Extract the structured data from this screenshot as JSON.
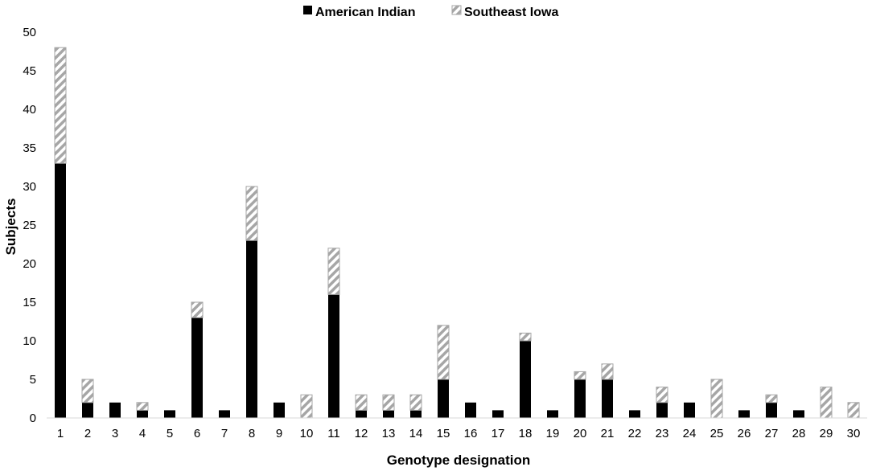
{
  "chart_data": {
    "type": "bar",
    "stacked": true,
    "title": "",
    "xlabel": "Genotype designation",
    "ylabel": "Subjects",
    "ylim": [
      0,
      50
    ],
    "yticks": [
      0,
      5,
      10,
      15,
      20,
      25,
      30,
      35,
      40,
      45,
      50
    ],
    "grid": false,
    "legend_position": "top-center",
    "categories": [
      "1",
      "2",
      "3",
      "4",
      "5",
      "6",
      "7",
      "8",
      "9",
      "10",
      "11",
      "12",
      "13",
      "14",
      "15",
      "16",
      "17",
      "18",
      "19",
      "20",
      "21",
      "22",
      "23",
      "24",
      "25",
      "26",
      "27",
      "28",
      "29",
      "30"
    ],
    "series": [
      {
        "name": "American Indian",
        "color": "#000000",
        "pattern": "solid",
        "values": [
          33,
          2,
          2,
          1,
          1,
          13,
          1,
          23,
          2,
          0,
          16,
          1,
          1,
          1,
          5,
          2,
          1,
          10,
          1,
          5,
          5,
          1,
          2,
          2,
          0,
          1,
          2,
          1,
          0,
          0
        ]
      },
      {
        "name": "Southeast Iowa",
        "color": "#a6a6a6",
        "pattern": "diagonal-stripes",
        "values": [
          15,
          3,
          0,
          1,
          0,
          2,
          0,
          7,
          0,
          3,
          6,
          2,
          2,
          2,
          7,
          0,
          0,
          1,
          0,
          1,
          2,
          0,
          2,
          0,
          5,
          0,
          1,
          0,
          4,
          2
        ]
      }
    ]
  }
}
